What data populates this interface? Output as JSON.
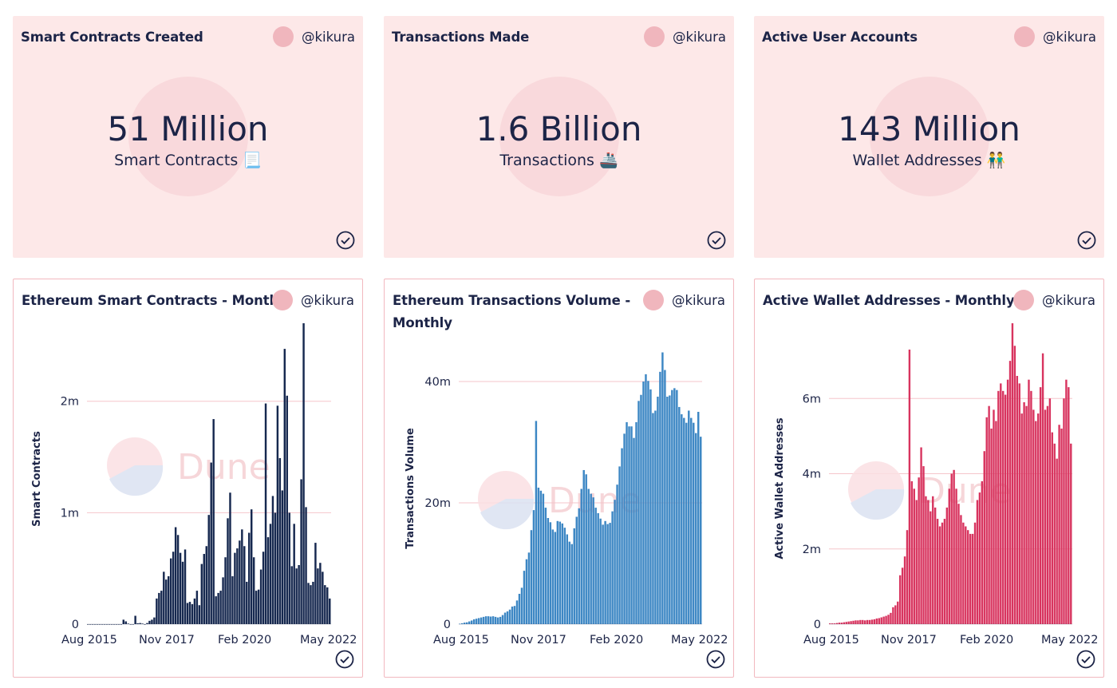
{
  "stats": [
    {
      "title": "Smart Contracts Created",
      "author": "@kikura",
      "value": "51 Million",
      "label": "Smart Contracts 📃"
    },
    {
      "title": "Transactions Made",
      "author": "@kikura",
      "value": "1.6 Billion",
      "label": "Transactions 🚢"
    },
    {
      "title": "Active User Accounts",
      "author": "@kikura",
      "value": "143 Million",
      "label": "Wallet Addresses 👬"
    }
  ],
  "charts": [
    {
      "title": "Ethereum Smart Contracts - Monthly",
      "author": "@kikura",
      "watermark": "Dune"
    },
    {
      "title_line1": "Ethereum Transactions Volume -",
      "title_line2": "Monthly",
      "author": "@kikura",
      "watermark": "Dune"
    },
    {
      "title": "Active Wallet Addresses - Monthly",
      "author": "@kikura",
      "watermark": "Dune"
    }
  ],
  "colors": {
    "navy": "#16284f",
    "blue": "#3d87c4",
    "crimson": "#d8345f",
    "grid": "#f5c6cb",
    "card_bg": "#fde8e8"
  },
  "chart_data": [
    {
      "type": "bar",
      "ylabel": "Smart Contracts",
      "x_ticks": [
        "Aug 2015",
        "Nov 2017",
        "Feb 2020",
        "May 2022"
      ],
      "y_ticks": [
        "0",
        "1m",
        "2m"
      ],
      "ylim": [
        0,
        2700000
      ],
      "color": "#16284f",
      "values": [
        0,
        0,
        0,
        0,
        0,
        0,
        0,
        0,
        0,
        0,
        0,
        0,
        0,
        0,
        0,
        40000,
        25000,
        5000,
        0,
        0,
        75000,
        8000,
        10000,
        5000,
        0,
        10000,
        30000,
        40000,
        60000,
        230000,
        280000,
        300000,
        470000,
        400000,
        430000,
        590000,
        650000,
        870000,
        800000,
        640000,
        560000,
        670000,
        190000,
        200000,
        180000,
        230000,
        300000,
        170000,
        540000,
        630000,
        700000,
        980000,
        1450000,
        1840000,
        250000,
        280000,
        300000,
        420000,
        600000,
        950000,
        1180000,
        430000,
        640000,
        680000,
        750000,
        850000,
        700000,
        380000,
        820000,
        1030000,
        600000,
        300000,
        310000,
        490000,
        650000,
        1980000,
        780000,
        900000,
        1150000,
        1000000,
        1960000,
        1490000,
        1200000,
        2470000,
        2050000,
        1000000,
        520000,
        900000,
        500000,
        530000,
        1300000,
        2700000,
        1050000,
        370000,
        350000,
        380000,
        730000,
        500000,
        550000,
        470000,
        350000,
        330000,
        230000
      ]
    },
    {
      "type": "bar",
      "ylabel": "Transactions Volume",
      "x_ticks": [
        "Aug 2015",
        "Nov 2017",
        "Feb 2020",
        "May 2022"
      ],
      "y_ticks": [
        "0",
        "20m",
        "40m"
      ],
      "ylim": [
        0,
        45000000
      ],
      "color": "#3d87c4",
      "values": [
        60000,
        150000,
        250000,
        300000,
        450000,
        600000,
        800000,
        900000,
        1000000,
        1100000,
        1200000,
        1300000,
        1300000,
        1250000,
        1300000,
        1200000,
        1100000,
        1200000,
        1500000,
        1900000,
        2100000,
        2400000,
        2900000,
        3000000,
        3900000,
        5000000,
        6000000,
        8800000,
        10700000,
        11800000,
        15500000,
        18800000,
        33500000,
        22500000,
        22000000,
        21500000,
        19200000,
        17500000,
        16800000,
        15600000,
        15200000,
        17000000,
        16900000,
        16600000,
        15900000,
        14800000,
        13600000,
        13200000,
        15800000,
        17700000,
        19100000,
        22300000,
        25400000,
        24700000,
        22300000,
        21500000,
        20900000,
        19200000,
        18300000,
        17400000,
        16400000,
        17000000,
        16500000,
        16700000,
        18600000,
        20500000,
        23000000,
        26000000,
        29000000,
        31400000,
        33300000,
        32600000,
        32600000,
        30700000,
        33300000,
        36800000,
        37800000,
        40000000,
        41200000,
        40100000,
        38700000,
        34800000,
        35200000,
        37500000,
        41600000,
        44800000,
        41900000,
        37500000,
        37700000,
        38600000,
        38900000,
        38600000,
        35800000,
        34600000,
        34000000,
        33200000,
        35200000,
        34000000,
        33200000,
        31500000,
        35000000,
        30900000
      ]
    },
    {
      "type": "bar",
      "ylabel": "Active Wallet Addresses",
      "x_ticks": [
        "Aug 2015",
        "Nov 2017",
        "Feb 2020",
        "May 2022"
      ],
      "y_ticks": [
        "0",
        "2m",
        "4m",
        "6m"
      ],
      "ylim": [
        0,
        8000000
      ],
      "color": "#d8345f",
      "values": [
        20000,
        20000,
        20000,
        30000,
        40000,
        40000,
        50000,
        60000,
        70000,
        80000,
        90000,
        100000,
        100000,
        110000,
        110000,
        100000,
        110000,
        110000,
        120000,
        130000,
        150000,
        160000,
        180000,
        200000,
        220000,
        250000,
        300000,
        450000,
        500000,
        600000,
        1300000,
        1500000,
        1800000,
        2500000,
        7300000,
        3800000,
        3600000,
        3300000,
        3900000,
        4700000,
        4200000,
        3400000,
        3300000,
        3000000,
        3400000,
        3100000,
        2800000,
        2600000,
        2700000,
        2800000,
        3100000,
        3600000,
        4000000,
        4100000,
        3600000,
        3200000,
        2900000,
        2700000,
        2600000,
        2500000,
        2400000,
        2400000,
        2700000,
        3300000,
        3500000,
        3800000,
        4600000,
        5500000,
        5800000,
        5200000,
        5700000,
        5400000,
        6200000,
        6400000,
        6200000,
        6100000,
        6500000,
        7000000,
        8000000,
        7400000,
        6600000,
        6400000,
        5600000,
        5900000,
        5800000,
        6500000,
        6200000,
        5700000,
        5400000,
        5600000,
        6300000,
        7200000,
        5700000,
        5800000,
        6000000,
        5100000,
        4800000,
        4400000,
        5300000,
        5200000,
        6000000,
        6500000,
        6300000,
        4800000
      ]
    }
  ]
}
